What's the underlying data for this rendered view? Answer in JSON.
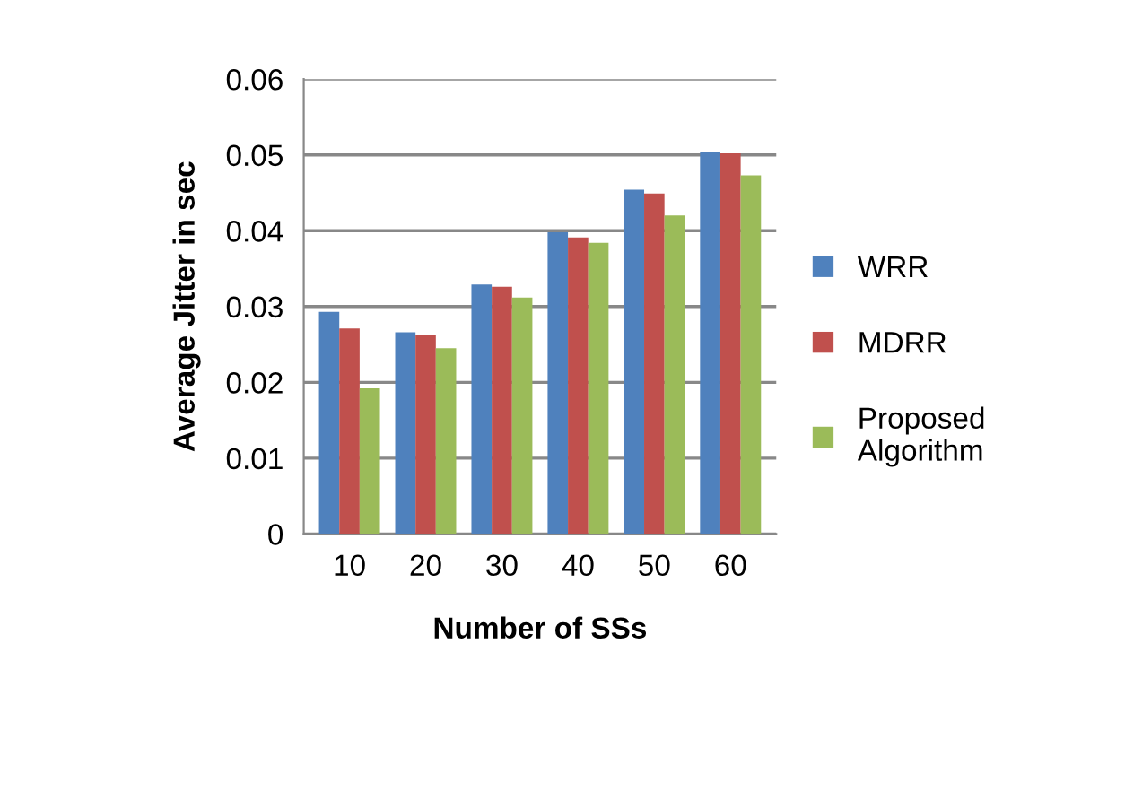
{
  "chart_data": {
    "type": "bar",
    "xlabel": "Number of SSs",
    "ylabel": "Average Jitter in sec",
    "categories": [
      "10",
      "20",
      "30",
      "40",
      "50",
      "60"
    ],
    "series": [
      {
        "name": "WRR",
        "color": "#4f81bd",
        "values": [
          0.0293,
          0.0266,
          0.0329,
          0.0398,
          0.0454,
          0.0504
        ]
      },
      {
        "name": "MDRR",
        "color": "#c0504d",
        "values": [
          0.0271,
          0.0262,
          0.0326,
          0.0391,
          0.0449,
          0.0502
        ]
      },
      {
        "name": "Proposed Algorithm",
        "color": "#9bbb59",
        "values": [
          0.0192,
          0.0245,
          0.0312,
          0.0384,
          0.042,
          0.0473
        ]
      }
    ],
    "ylim": [
      0,
      0.06
    ],
    "yticks": [
      {
        "value": 0,
        "label": "0"
      },
      0.01,
      0.02,
      0.03,
      0.04,
      0.05,
      0.06
    ],
    "grid": "y",
    "legend": "right"
  }
}
